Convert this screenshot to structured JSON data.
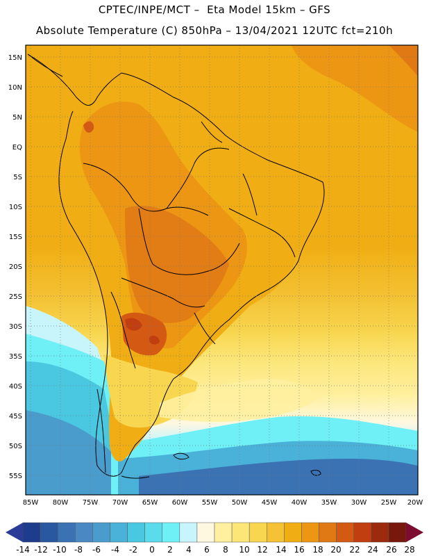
{
  "header": {
    "line1": "CPTEC/INPE/MCT –  Eta Model 15km – GFS",
    "line2": "Absolute Temperature (C) 850hPa – 13/04/2021 12UTC fct=210h"
  },
  "axes": {
    "lat_labels": [
      "15N",
      "10N",
      "5N",
      "EQ",
      "5S",
      "10S",
      "15S",
      "20S",
      "25S",
      "30S",
      "35S",
      "40S",
      "45S",
      "50S",
      "55S"
    ],
    "lon_labels": [
      "85W",
      "80W",
      "75W",
      "70W",
      "65W",
      "60W",
      "55W",
      "50W",
      "45W",
      "40W",
      "35W",
      "30W",
      "25W",
      "20W"
    ]
  },
  "colorbar": {
    "labels": [
      "-14",
      "-12",
      "-10",
      "-8",
      "-6",
      "-4",
      "-2",
      "0",
      "2",
      "4",
      "6",
      "8",
      "10",
      "12",
      "14",
      "16",
      "18",
      "20",
      "22",
      "24",
      "26",
      "28"
    ],
    "colors": [
      "#1e3c8c",
      "#2a58a0",
      "#3a72b4",
      "#4a88c4",
      "#4a9ccc",
      "#4ab2d8",
      "#4ac8e2",
      "#5adcec",
      "#6ef0f6",
      "#c8f4fc",
      "#fff8e0",
      "#fff0a0",
      "#fce678",
      "#f8d650",
      "#f4c234",
      "#f0ae14",
      "#ec9614",
      "#e07814",
      "#d45a14",
      "#c03e10",
      "#9c2a0c",
      "#78180c"
    ],
    "low_arrow": "#2a3c98",
    "high_arrow": "#7c0c30"
  }
}
